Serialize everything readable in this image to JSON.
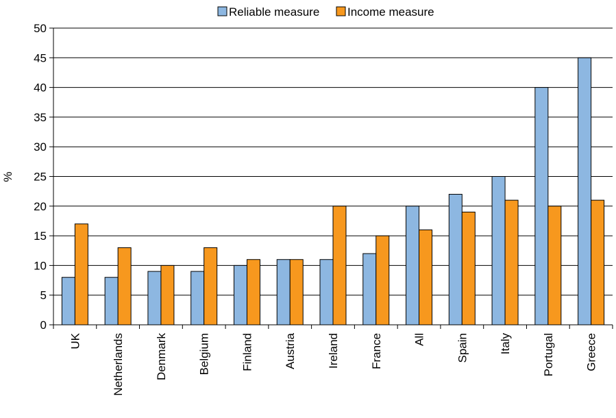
{
  "chart_data": {
    "type": "bar",
    "ylabel": "%",
    "ylim": [
      0,
      50
    ],
    "yticks": [
      0,
      5,
      10,
      15,
      20,
      25,
      30,
      35,
      40,
      45,
      50
    ],
    "grid": true,
    "legend_position": "top-center",
    "categories": [
      "UK",
      "Netherlands",
      "Denmark",
      "Belgium",
      "Finland",
      "Austria",
      "Ireland",
      "France",
      "All",
      "Spain",
      "Italy",
      "Portugal",
      "Greece"
    ],
    "series": [
      {
        "name": "Reliable measure",
        "color": "#8DB7E1",
        "values": [
          8,
          8,
          9,
          9,
          10,
          11,
          11,
          12,
          20,
          22,
          25,
          40,
          45
        ]
      },
      {
        "name": "Income measure",
        "color": "#F7981E",
        "values": [
          17,
          13,
          10,
          13,
          11,
          11,
          20,
          15,
          16,
          19,
          21,
          20,
          21
        ]
      }
    ]
  }
}
